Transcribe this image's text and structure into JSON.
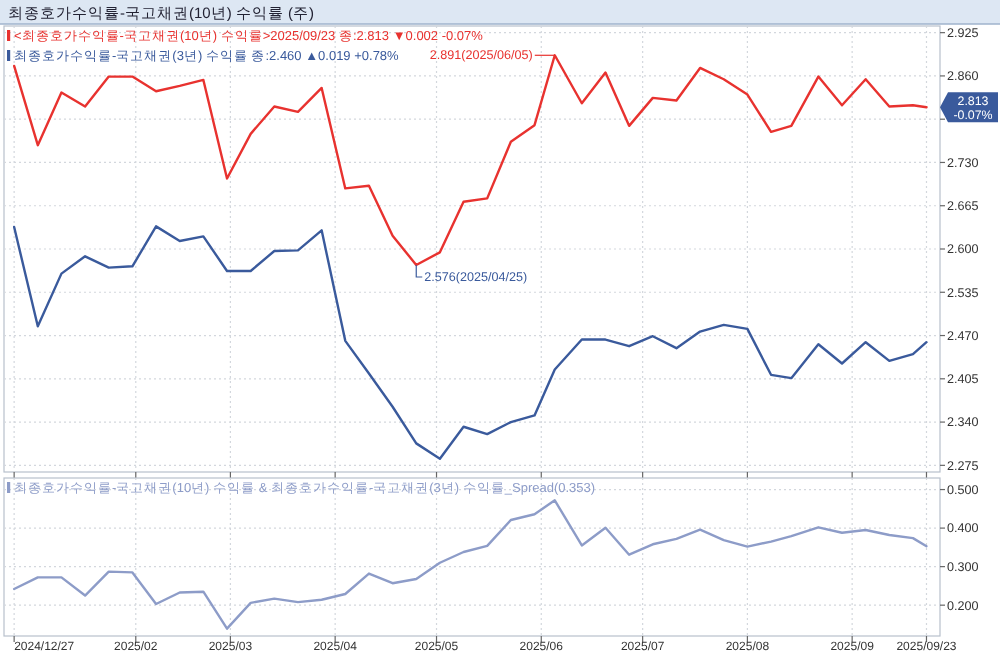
{
  "chart_data": [
    {
      "type": "line",
      "title": "최종호가수익률-국고채권(10년) 수익률 (주)",
      "legend": "top left",
      "grid": true,
      "marker": "none",
      "line_style": "solid",
      "tick_labels": "y",
      "x": [
        "2024-12-27",
        "2025-01-03",
        "2025-01-10",
        "2025-01-17",
        "2025-01-24",
        "2025-01-31",
        "2025-02-07",
        "2025-02-14",
        "2025-02-21",
        "2025-02-28",
        "2025-03-07",
        "2025-03-14",
        "2025-03-21",
        "2025-03-28",
        "2025-04-04",
        "2025-04-11",
        "2025-04-18",
        "2025-04-25",
        "2025-05-02",
        "2025-05-09",
        "2025-05-16",
        "2025-05-23",
        "2025-05-30",
        "2025-06-05",
        "2025-06-13",
        "2025-06-20",
        "2025-06-27",
        "2025-07-04",
        "2025-07-11",
        "2025-07-18",
        "2025-07-25",
        "2025-08-01",
        "2025-08-08",
        "2025-08-14",
        "2025-08-22",
        "2025-08-29",
        "2025-09-05",
        "2025-09-12",
        "2025-09-19",
        "2025-09-23"
      ],
      "xlim": [
        "2024-12-24",
        "2025-09-27"
      ],
      "xticks": [
        {
          "value": "2024-12-27",
          "label": null
        },
        {
          "value": "2025-02-01",
          "label": null
        },
        {
          "value": "2025-03-01",
          "label": null
        },
        {
          "value": "2025-04-01",
          "label": null
        },
        {
          "value": "2025-05-01",
          "label": null
        },
        {
          "value": "2025-06-01",
          "label": null
        },
        {
          "value": "2025-07-01",
          "label": null
        },
        {
          "value": "2025-08-01",
          "label": null
        },
        {
          "value": "2025-09-01",
          "label": null
        },
        {
          "value": "2025-09-23",
          "label": null
        }
      ],
      "ylim": [
        2.265,
        2.935
      ],
      "yticks": [
        {
          "value": 2.275,
          "label": "2.275"
        },
        {
          "value": 2.34,
          "label": "2.340"
        },
        {
          "value": 2.405,
          "label": "2.405"
        },
        {
          "value": 2.47,
          "label": "2.470"
        },
        {
          "value": 2.535,
          "label": "2.535"
        },
        {
          "value": 2.6,
          "label": "2.600"
        },
        {
          "value": 2.665,
          "label": "2.665"
        },
        {
          "value": 2.73,
          "label": "2.730"
        },
        {
          "value": 2.795,
          "label": null
        },
        {
          "value": 2.86,
          "label": "2.860"
        },
        {
          "value": 2.925,
          "label": "2.925"
        }
      ],
      "series": [
        {
          "name": "<최종호가수익률-국고채권(10년) 수익률>2025/09/23 종:2.813 ▼0.002 -0.07%",
          "color": "#e8322f",
          "values": [
            2.875,
            2.756,
            2.835,
            2.814,
            2.859,
            2.859,
            2.837,
            2.845,
            2.854,
            2.706,
            2.773,
            2.814,
            2.806,
            2.842,
            2.691,
            2.695,
            2.62,
            2.576,
            2.595,
            2.671,
            2.676,
            2.761,
            2.786,
            2.891,
            2.819,
            2.865,
            2.785,
            2.827,
            2.823,
            2.872,
            2.855,
            2.832,
            2.776,
            2.785,
            2.859,
            2.816,
            2.855,
            2.814,
            2.816,
            2.813
          ]
        },
        {
          "name": "최종호가수익률-국고채권(3년) 수익률 종:2.460 ▲0.019 +0.78%",
          "color": "#3a5a9c",
          "values": [
            2.633,
            2.484,
            2.563,
            2.589,
            2.572,
            2.574,
            2.634,
            2.612,
            2.619,
            2.567,
            2.567,
            2.597,
            2.598,
            2.628,
            2.462,
            2.413,
            2.363,
            2.308,
            2.285,
            2.333,
            2.322,
            2.34,
            2.35,
            2.419,
            2.464,
            2.464,
            2.454,
            2.469,
            2.451,
            2.476,
            2.486,
            2.48,
            2.411,
            2.406,
            2.457,
            2.428,
            2.46,
            2.432,
            2.442,
            2.46
          ]
        }
      ],
      "annotations": [
        {
          "text": "2.891(2025/06/05)",
          "x": "2025-06-05",
          "y": 2.891
        },
        {
          "text": "2.576(2025/04/25)",
          "x": "2025-04-25",
          "y": 2.576
        },
        {
          "text": "2.813 -0.07%",
          "x": "2025-09-23",
          "y": 2.813
        }
      ]
    },
    {
      "type": "line",
      "legend": "top left",
      "grid": true,
      "marker": "none",
      "line_style": "solid",
      "x": [
        "2024-12-27",
        "2025-01-03",
        "2025-01-10",
        "2025-01-17",
        "2025-01-24",
        "2025-01-31",
        "2025-02-07",
        "2025-02-14",
        "2025-02-21",
        "2025-02-28",
        "2025-03-07",
        "2025-03-14",
        "2025-03-21",
        "2025-03-28",
        "2025-04-04",
        "2025-04-11",
        "2025-04-18",
        "2025-04-25",
        "2025-05-02",
        "2025-05-09",
        "2025-05-16",
        "2025-05-23",
        "2025-05-30",
        "2025-06-05",
        "2025-06-13",
        "2025-06-20",
        "2025-06-27",
        "2025-07-04",
        "2025-07-11",
        "2025-07-18",
        "2025-07-25",
        "2025-08-01",
        "2025-08-08",
        "2025-08-14",
        "2025-08-22",
        "2025-08-29",
        "2025-09-05",
        "2025-09-12",
        "2025-09-19",
        "2025-09-23"
      ],
      "xlim": [
        "2024-12-24",
        "2025-09-27"
      ],
      "xticks": [
        {
          "value": "2024-12-27",
          "label": "2024/12/27"
        },
        {
          "value": "2025-02-01",
          "label": "2025/02"
        },
        {
          "value": "2025-03-01",
          "label": "2025/03"
        },
        {
          "value": "2025-04-01",
          "label": "2025/04"
        },
        {
          "value": "2025-05-01",
          "label": "2025/05"
        },
        {
          "value": "2025-06-01",
          "label": "2025/06"
        },
        {
          "value": "2025-07-01",
          "label": "2025/07"
        },
        {
          "value": "2025-08-01",
          "label": "2025/08"
        },
        {
          "value": "2025-09-01",
          "label": "2025/09"
        },
        {
          "value": "2025-09-23",
          "label": "2025/09/23"
        }
      ],
      "ylim": [
        0.12,
        0.53
      ],
      "yticks": [
        {
          "value": 0.2,
          "label": "0.200"
        },
        {
          "value": 0.3,
          "label": "0.300"
        },
        {
          "value": 0.4,
          "label": "0.400"
        },
        {
          "value": 0.5,
          "label": "0.500"
        }
      ],
      "series": [
        {
          "name": "최종호가수익률-국고채권(10년) 수익률 & 최종호가수익률-국고채권(3년) 수익률_Spread(0.353)",
          "color": "#8d9cc8",
          "values": [
            0.242,
            0.272,
            0.272,
            0.225,
            0.287,
            0.285,
            0.203,
            0.233,
            0.235,
            0.139,
            0.206,
            0.217,
            0.208,
            0.214,
            0.229,
            0.282,
            0.257,
            0.268,
            0.31,
            0.338,
            0.354,
            0.421,
            0.436,
            0.472,
            0.355,
            0.401,
            0.331,
            0.358,
            0.372,
            0.396,
            0.369,
            0.352,
            0.365,
            0.379,
            0.402,
            0.388,
            0.395,
            0.382,
            0.374,
            0.353
          ]
        }
      ]
    }
  ]
}
